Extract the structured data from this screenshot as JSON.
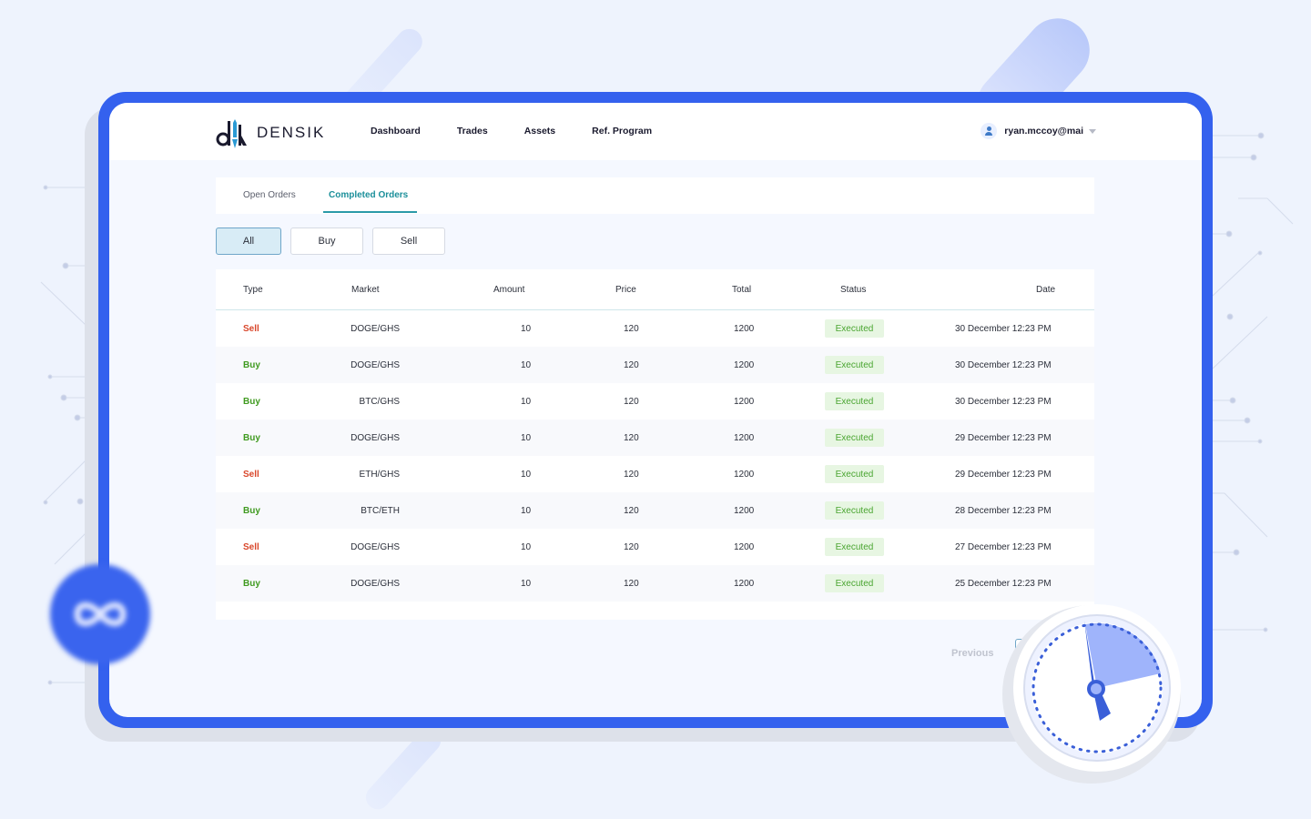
{
  "brand": {
    "name": "DENSIK",
    "accent": "#3461ee"
  },
  "nav": {
    "items": [
      "Dashboard",
      "Trades",
      "Assets",
      "Ref. Program"
    ]
  },
  "user": {
    "email": "ryan.mccoy@mai"
  },
  "tabs": {
    "open": "Open Orders",
    "completed": "Completed Orders",
    "active": "completed"
  },
  "filters": {
    "all": "All",
    "buy": "Buy",
    "sell": "Sell",
    "active": "all"
  },
  "table": {
    "headers": {
      "type": "Type",
      "market": "Market",
      "amount": "Amount",
      "price": "Price",
      "total": "Total",
      "status": "Status",
      "date": "Date"
    },
    "rows": [
      {
        "type": "Sell",
        "market": "DOGE/GHS",
        "amount": "10",
        "price": "120",
        "total": "1200",
        "status": "Executed",
        "date": "30 December  12:23 PM"
      },
      {
        "type": "Buy",
        "market": "DOGE/GHS",
        "amount": "10",
        "price": "120",
        "total": "1200",
        "status": "Executed",
        "date": "30 December  12:23 PM"
      },
      {
        "type": "Buy",
        "market": "BTC/GHS",
        "amount": "10",
        "price": "120",
        "total": "1200",
        "status": "Executed",
        "date": "30 December  12:23 PM"
      },
      {
        "type": "Buy",
        "market": "DOGE/GHS",
        "amount": "10",
        "price": "120",
        "total": "1200",
        "status": "Executed",
        "date": "29 December  12:23 PM"
      },
      {
        "type": "Sell",
        "market": "ETH/GHS",
        "amount": "10",
        "price": "120",
        "total": "1200",
        "status": "Executed",
        "date": "29 December  12:23 PM"
      },
      {
        "type": "Buy",
        "market": "BTC/ETH",
        "amount": "10",
        "price": "120",
        "total": "1200",
        "status": "Executed",
        "date": "28 December  12:23 PM"
      },
      {
        "type": "Sell",
        "market": "DOGE/GHS",
        "amount": "10",
        "price": "120",
        "total": "1200",
        "status": "Executed",
        "date": "27 December  12:23 PM"
      },
      {
        "type": "Buy",
        "market": "DOGE/GHS",
        "amount": "10",
        "price": "120",
        "total": "1200",
        "status": "Executed",
        "date": "25 December  12:23 PM"
      }
    ]
  },
  "pagination": {
    "previous": "Previous"
  },
  "colors": {
    "sell": "#d9472b",
    "buy": "#3f9a1f",
    "executed_bg": "#e7f6e2",
    "executed_text": "#4aa531",
    "tab_active": "#1b8f9a"
  },
  "icons": {
    "user": "user-icon",
    "dropdown": "chevron-down-icon",
    "clock": "clock-icon",
    "infinity": "infinity-icon"
  }
}
